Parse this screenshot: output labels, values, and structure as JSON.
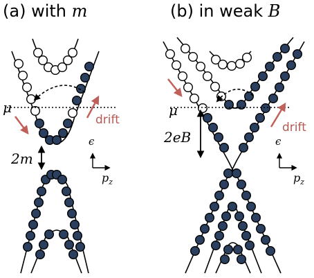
{
  "panel_a": {
    "title_prefix": "(a) with ",
    "title_symbol": "m",
    "mu_label": "μ",
    "drift_label": "drift",
    "gap_label": "2m",
    "axis_energy": "ϵ",
    "axis_momentum": "p",
    "axis_momentum_sub": "z"
  },
  "panel_b": {
    "title_prefix": "(b) in weak ",
    "title_symbol": "B",
    "mu_label": "μ",
    "drift_label": "drift",
    "gap_label": "2eB",
    "axis_energy": "ϵ",
    "axis_momentum": "p",
    "axis_momentum_sub": "z"
  },
  "colors": {
    "filled_state": "#2b3f5e",
    "empty_state": "#ffffff",
    "drift_arrow": "#c0605a",
    "line": "#000000"
  }
}
